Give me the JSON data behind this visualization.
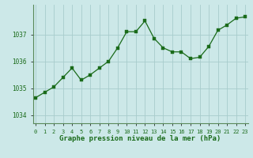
{
  "x": [
    0,
    1,
    2,
    3,
    4,
    5,
    6,
    7,
    8,
    9,
    10,
    11,
    12,
    13,
    14,
    15,
    16,
    17,
    18,
    19,
    20,
    21,
    22,
    23
  ],
  "y": [
    1034.65,
    1034.85,
    1035.05,
    1035.4,
    1035.75,
    1035.3,
    1035.5,
    1035.75,
    1036.0,
    1036.5,
    1037.1,
    1037.1,
    1037.5,
    1036.85,
    1036.5,
    1036.35,
    1036.35,
    1036.1,
    1036.15,
    1036.55,
    1037.15,
    1037.35,
    1037.6,
    1037.65
  ],
  "line_color": "#1a6b1a",
  "marker_color": "#1a6b1a",
  "bg_color": "#cce8e8",
  "grid_color": "#a8cccc",
  "xlabel": "Graphe pression niveau de la mer (hPa)",
  "xlabel_color": "#1a6b1a",
  "ylabel_ticks": [
    1034,
    1035,
    1036,
    1037
  ],
  "xlim": [
    -0.3,
    23.3
  ],
  "ylim": [
    1033.7,
    1038.1
  ],
  "xtick_labels": [
    "0",
    "1",
    "2",
    "3",
    "4",
    "5",
    "6",
    "7",
    "8",
    "9",
    "10",
    "11",
    "12",
    "13",
    "14",
    "15",
    "16",
    "17",
    "18",
    "19",
    "20",
    "21",
    "22",
    "23"
  ],
  "border_color": "#5a8a5a"
}
